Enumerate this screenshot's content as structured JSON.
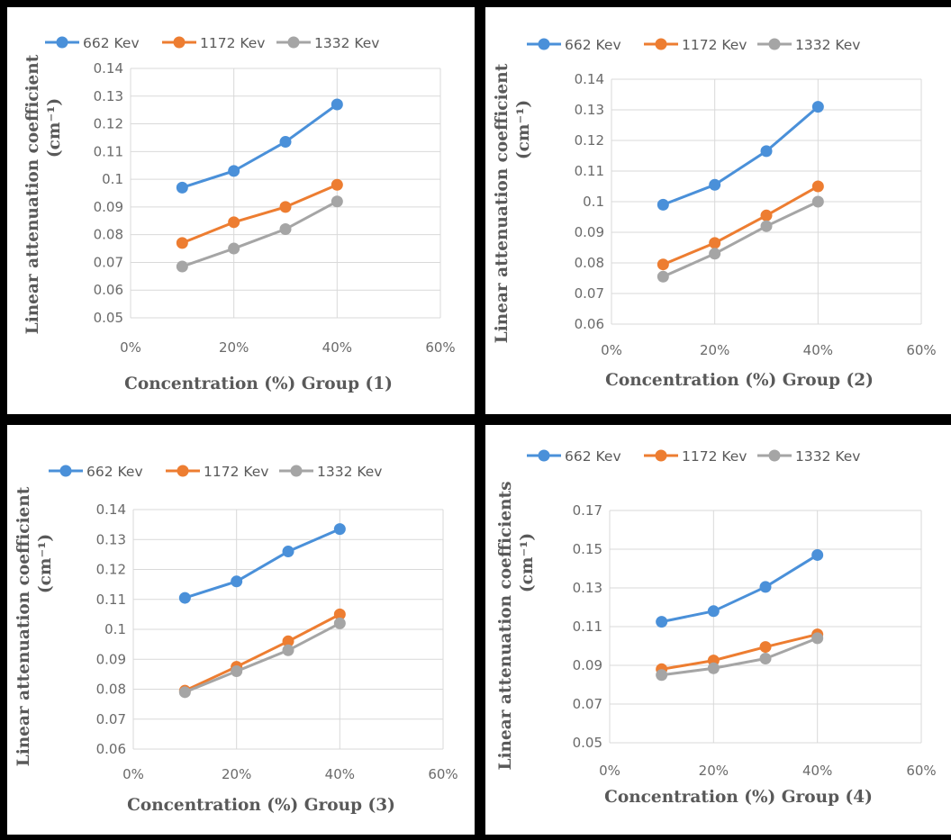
{
  "colors": {
    "series": [
      "#4a90d9",
      "#ed7d31",
      "#a5a5a5"
    ],
    "grid": "#d9d9d9",
    "background": "#ffffff",
    "border": "#000000"
  },
  "chart_data": [
    {
      "type": "line",
      "xlabel": "Concentration (%) Group (1)",
      "ylabel": "Linear attenuation coefficient",
      "ylabel_unit": "(cm⁻¹)",
      "x": [
        0.1,
        0.2,
        0.3,
        0.4
      ],
      "xlim": [
        0,
        0.6
      ],
      "xticks": [
        "0%",
        "20%",
        "40%",
        "60%"
      ],
      "ylim": [
        0.05,
        0.14
      ],
      "yticks": [
        "0.05",
        "0.06",
        "0.07",
        "0.08",
        "0.09",
        "0.1",
        "0.11",
        "0.12",
        "0.13",
        "0.14"
      ],
      "grid": "on",
      "legend": "top",
      "series": [
        {
          "name": "662 Kev",
          "values": [
            0.097,
            0.103,
            0.1135,
            0.127
          ]
        },
        {
          "name": "1172 Kev",
          "values": [
            0.077,
            0.0845,
            0.09,
            0.098
          ]
        },
        {
          "name": "1332 Kev",
          "values": [
            0.0685,
            0.075,
            0.082,
            0.092
          ]
        }
      ]
    },
    {
      "type": "line",
      "xlabel": "Concentration (%) Group (2)",
      "ylabel": "Linear attenuation coefficient",
      "ylabel_unit": "(cm⁻¹)",
      "x": [
        0.1,
        0.2,
        0.3,
        0.4
      ],
      "xlim": [
        0,
        0.6
      ],
      "xticks": [
        "0%",
        "20%",
        "40%",
        "60%"
      ],
      "ylim": [
        0.06,
        0.14
      ],
      "yticks": [
        "0.06",
        "0.07",
        "0.08",
        "0.09",
        "0.1",
        "0.11",
        "0.12",
        "0.13",
        "0.14"
      ],
      "grid": "on",
      "legend": "top",
      "series": [
        {
          "name": "662 Kev",
          "values": [
            0.099,
            0.1055,
            0.1165,
            0.131
          ]
        },
        {
          "name": "1172 Kev",
          "values": [
            0.0795,
            0.0865,
            0.0955,
            0.105
          ]
        },
        {
          "name": "1332 Kev",
          "values": [
            0.0755,
            0.083,
            0.092,
            0.1
          ]
        }
      ]
    },
    {
      "type": "line",
      "xlabel": "Concentration (%) Group (3)",
      "ylabel": "Linear attenuation coefficient",
      "ylabel_unit": "(cm⁻¹)",
      "x": [
        0.1,
        0.2,
        0.3,
        0.4
      ],
      "xlim": [
        0,
        0.6
      ],
      "xticks": [
        "0%",
        "20%",
        "40%",
        "60%"
      ],
      "ylim": [
        0.06,
        0.14
      ],
      "yticks": [
        "0.06",
        "0.07",
        "0.08",
        "0.09",
        "0.1",
        "0.11",
        "0.12",
        "0.13",
        "0.14"
      ],
      "grid": "on",
      "legend": "top",
      "series": [
        {
          "name": "662 Kev",
          "values": [
            0.1105,
            0.116,
            0.126,
            0.1335
          ]
        },
        {
          "name": "1172 Kev",
          "values": [
            0.0795,
            0.0875,
            0.096,
            0.105
          ]
        },
        {
          "name": "1332 Kev",
          "values": [
            0.079,
            0.086,
            0.093,
            0.102
          ]
        }
      ]
    },
    {
      "type": "line",
      "xlabel": "Concentration (%) Group (4)",
      "ylabel": "Linear attenuation coefficients",
      "ylabel_unit": "(cm⁻¹)",
      "x": [
        0.1,
        0.2,
        0.3,
        0.4
      ],
      "xlim": [
        0,
        0.6
      ],
      "xticks": [
        "0%",
        "20%",
        "40%",
        "60%"
      ],
      "ylim": [
        0.05,
        0.17
      ],
      "yticks": [
        "0.05",
        "0.07",
        "0.09",
        "0.11",
        "0.13",
        "0.15",
        "0.17"
      ],
      "grid": "on",
      "legend": "top",
      "series": [
        {
          "name": "662 Kev",
          "values": [
            0.1125,
            0.118,
            0.1305,
            0.147
          ]
        },
        {
          "name": "1172 Kev",
          "values": [
            0.088,
            0.0925,
            0.0995,
            0.106
          ]
        },
        {
          "name": "1332 Kev",
          "values": [
            0.085,
            0.0885,
            0.0935,
            0.104
          ]
        }
      ]
    }
  ]
}
